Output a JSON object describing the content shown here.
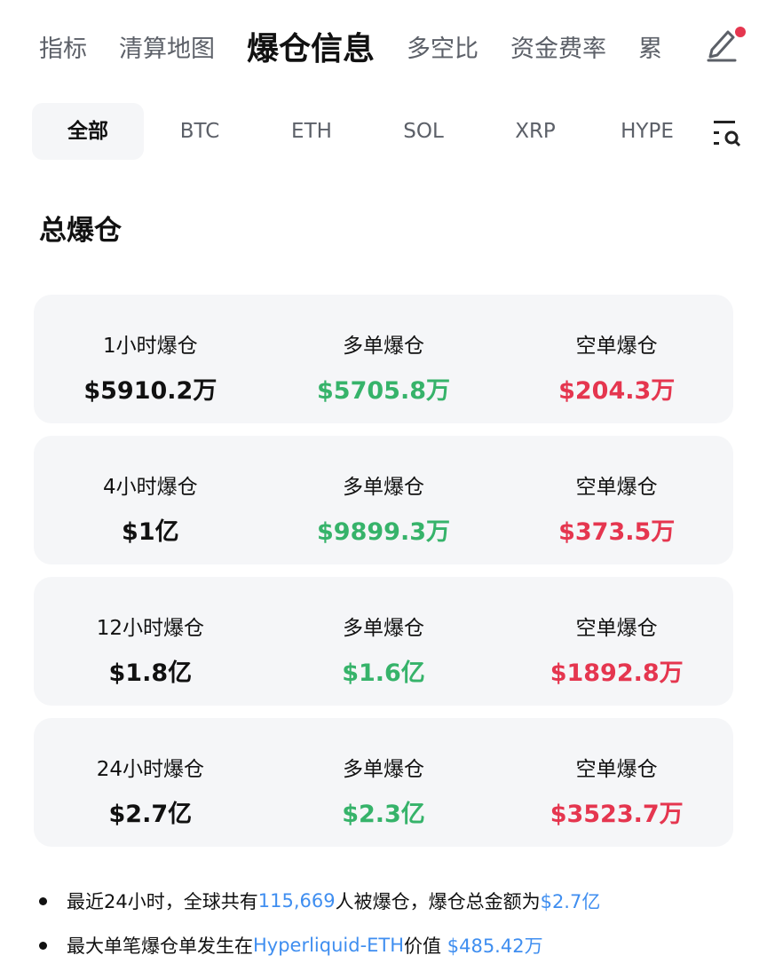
{
  "top_tabs": [
    {
      "label": "指标"
    },
    {
      "label": "清算地图"
    },
    {
      "label": "爆仓信息",
      "active": true
    },
    {
      "label": "多空比"
    },
    {
      "label": "资金费率"
    },
    {
      "label": "累"
    }
  ],
  "edit_icon": "pencil-icon",
  "notification_dot_color": "#e5364f",
  "filters": [
    {
      "label": "全部",
      "active": true
    },
    {
      "label": "BTC"
    },
    {
      "label": "ETH"
    },
    {
      "label": "SOL"
    },
    {
      "label": "XRP"
    },
    {
      "label": "HYPE"
    }
  ],
  "filter_icon": "list-search-icon",
  "section_title": "总爆仓",
  "cards": [
    {
      "total_label": "1小时爆仓",
      "total": "$5910.2万",
      "long_label": "多单爆仓",
      "long": "$5705.8万",
      "short_label": "空单爆仓",
      "short": "$204.3万"
    },
    {
      "total_label": "4小时爆仓",
      "total": "$1亿",
      "long_label": "多单爆仓",
      "long": "$9899.3万",
      "short_label": "空单爆仓",
      "short": "$373.5万"
    },
    {
      "total_label": "12小时爆仓",
      "total": "$1.8亿",
      "long_label": "多单爆仓",
      "long": "$1.6亿",
      "short_label": "空单爆仓",
      "short": "$1892.8万"
    },
    {
      "total_label": "24小时爆仓",
      "total": "$2.7亿",
      "long_label": "多单爆仓",
      "long": "$2.3亿",
      "short_label": "空单爆仓",
      "short": "$3523.7万"
    }
  ],
  "notes": {
    "n1": {
      "a": "最近24小时，全球共有",
      "b": "115,669",
      "c": "人被爆仓，爆仓总金额为",
      "d": "$2.7亿"
    },
    "n2": {
      "a": "最大单笔爆仓单发生在",
      "b": "Hyperliquid-ETH",
      "c": "价值 ",
      "d": "$485.42万"
    }
  },
  "colors": {
    "long": "#36b36a",
    "short": "#e5364f",
    "link": "#3f8ef0",
    "card_bg": "#f5f6f8"
  }
}
